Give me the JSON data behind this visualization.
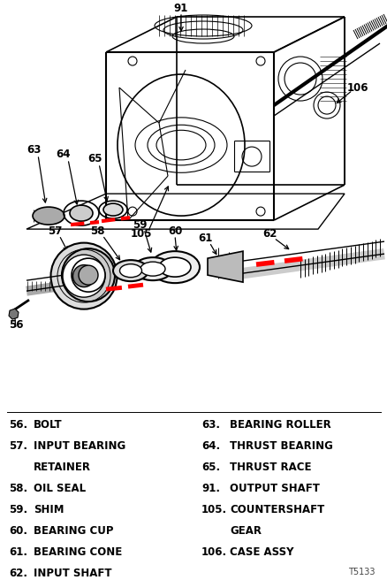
{
  "figure_size": [
    4.39,
    6.56
  ],
  "dpi": 100,
  "background_color": "#ffffff",
  "text_color": "#000000",
  "watermark": "T5133",
  "legend_left": [
    [
      "56.",
      "BOLT"
    ],
    [
      "57.",
      "INPUT BEARING"
    ],
    [
      "",
      "RETAINER"
    ],
    [
      "58.",
      "OIL SEAL"
    ],
    [
      "59.",
      "SHIM"
    ],
    [
      "60.",
      "BEARING CUP"
    ],
    [
      "61.",
      "BEARING CONE"
    ],
    [
      "62.",
      "INPUT SHAFT"
    ]
  ],
  "legend_right": [
    [
      "63.",
      "BEARING ROLLER"
    ],
    [
      "64.",
      "THRUST BEARING"
    ],
    [
      "65.",
      "THRUST RACE"
    ],
    [
      "91.",
      "OUTPUT SHAFT"
    ],
    [
      "105.",
      "COUNTERSHAFT"
    ],
    [
      "",
      "GEAR"
    ],
    [
      "106.",
      "CASE ASSY"
    ]
  ]
}
